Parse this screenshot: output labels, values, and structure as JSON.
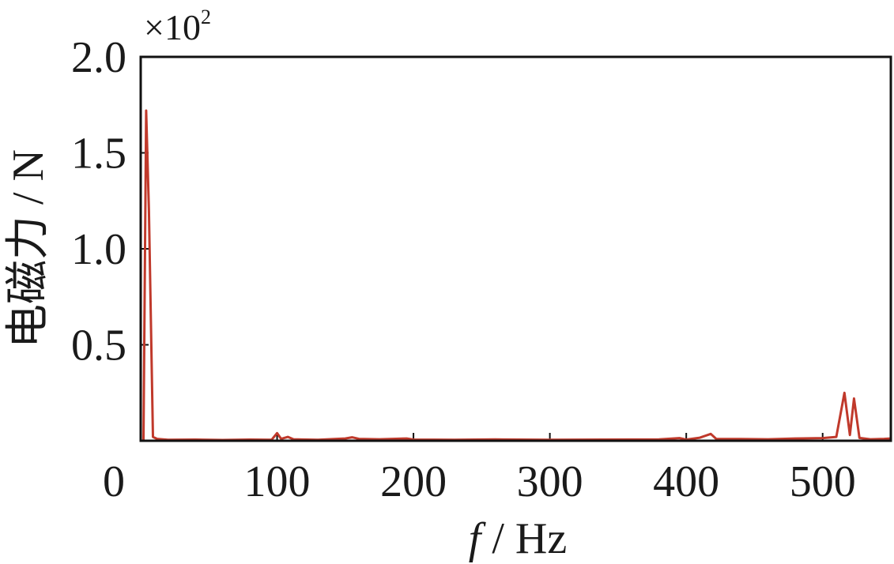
{
  "chart_data": {
    "type": "line",
    "xlabel_italic": "f",
    "xlabel_rest": " / Hz",
    "ylabel": "电磁力 / N",
    "y_multiplier_base": "×10",
    "y_multiplier_exp": "2",
    "xlim": [
      0,
      550
    ],
    "ylim": [
      0,
      2.0
    ],
    "x_ticks": [
      0,
      100,
      200,
      300,
      400,
      500
    ],
    "x_tick_labels": [
      "0",
      "100",
      "200",
      "300",
      "400",
      "500"
    ],
    "y_ticks": [
      0.5,
      1.0,
      1.5,
      2.0
    ],
    "y_tick_labels": [
      "0.5",
      "1.0",
      "1.5",
      "2.0"
    ],
    "grid": false,
    "series": [
      {
        "color": "#c0392b",
        "points": [
          [
            0,
            0.0
          ],
          [
            2,
            0.0
          ],
          [
            4,
            1.72
          ],
          [
            6,
            1.2
          ],
          [
            9,
            0.02
          ],
          [
            12,
            0.01
          ],
          [
            20,
            0.005
          ],
          [
            40,
            0.006
          ],
          [
            60,
            0.004
          ],
          [
            80,
            0.006
          ],
          [
            96,
            0.005
          ],
          [
            100,
            0.04
          ],
          [
            103,
            0.01
          ],
          [
            108,
            0.02
          ],
          [
            112,
            0.008
          ],
          [
            130,
            0.005
          ],
          [
            150,
            0.012
          ],
          [
            155,
            0.018
          ],
          [
            160,
            0.01
          ],
          [
            175,
            0.008
          ],
          [
            195,
            0.012
          ],
          [
            200,
            0.006
          ],
          [
            230,
            0.005
          ],
          [
            260,
            0.007
          ],
          [
            300,
            0.005
          ],
          [
            340,
            0.006
          ],
          [
            380,
            0.007
          ],
          [
            395,
            0.014
          ],
          [
            400,
            0.006
          ],
          [
            410,
            0.016
          ],
          [
            418,
            0.036
          ],
          [
            422,
            0.01
          ],
          [
            440,
            0.009
          ],
          [
            460,
            0.008
          ],
          [
            480,
            0.012
          ],
          [
            500,
            0.014
          ],
          [
            510,
            0.02
          ],
          [
            516,
            0.25
          ],
          [
            520,
            0.03
          ],
          [
            523,
            0.22
          ],
          [
            527,
            0.015
          ],
          [
            535,
            0.008
          ],
          [
            545,
            0.01
          ],
          [
            550,
            0.012
          ]
        ]
      }
    ]
  }
}
